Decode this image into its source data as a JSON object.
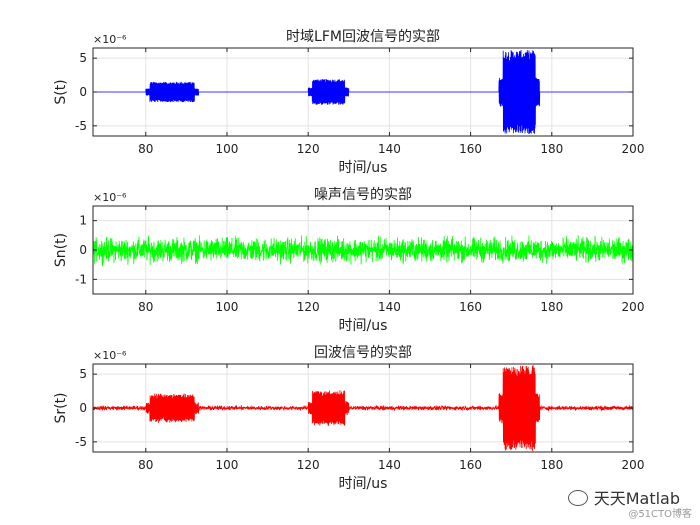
{
  "chart_data": [
    {
      "type": "line",
      "title": "时域LFM回波信号的实部",
      "xlabel": "时间/us",
      "ylabel": "S(t)",
      "exponent_label": "×10⁻⁶",
      "xlim": [
        67,
        200
      ],
      "ylim": [
        -6.5,
        6.5
      ],
      "xticks": [
        80,
        100,
        120,
        140,
        160,
        180,
        200
      ],
      "yticks": [
        -5,
        0,
        5
      ],
      "grid": true,
      "color": "#0000ff",
      "bursts": [
        {
          "start": 80,
          "end": 93,
          "amplitude": 1.5
        },
        {
          "start": 120,
          "end": 130,
          "amplitude": 1.9
        },
        {
          "start": 167,
          "end": 177,
          "amplitude": 6.2
        }
      ],
      "noise_amplitude": 0
    },
    {
      "type": "line",
      "title": "噪声信号的实部",
      "xlabel": "时间/us",
      "ylabel": "Sn(t)",
      "exponent_label": "×10⁻⁶",
      "xlim": [
        67,
        200
      ],
      "ylim": [
        -1.5,
        1.5
      ],
      "xticks": [
        80,
        100,
        120,
        140,
        160,
        180,
        200
      ],
      "yticks": [
        -1,
        0,
        1
      ],
      "grid": true,
      "color": "#00ff00",
      "bursts": [],
      "noise_amplitude": 1.3
    },
    {
      "type": "line",
      "title": "回波信号的实部",
      "xlabel": "时间/us",
      "ylabel": "Sr(t)",
      "exponent_label": "×10⁻⁶",
      "xlim": [
        67,
        200
      ],
      "ylim": [
        -6.5,
        6.5
      ],
      "xticks": [
        80,
        100,
        120,
        140,
        160,
        180,
        200
      ],
      "yticks": [
        -5,
        0,
        5
      ],
      "grid": true,
      "color": "#ff0000",
      "bursts": [
        {
          "start": 80,
          "end": 93,
          "amplitude": 2.0
        },
        {
          "start": 120,
          "end": 130,
          "amplitude": 2.5
        },
        {
          "start": 167,
          "end": 177,
          "amplitude": 6.2
        }
      ],
      "noise_amplitude": 1.0
    }
  ],
  "watermark": {
    "icon": "wechat-icon",
    "main": "天天Matlab",
    "sub": "@51CTO博客"
  }
}
